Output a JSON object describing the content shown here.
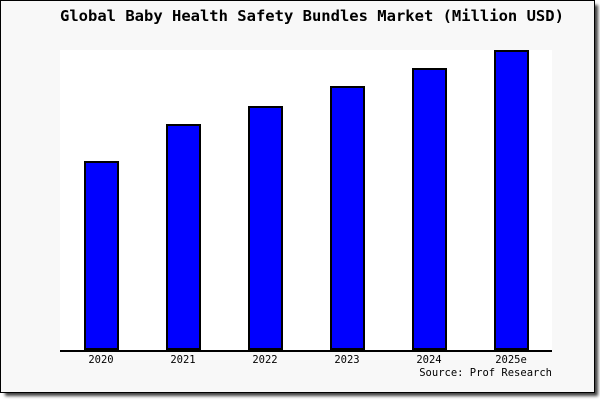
{
  "page": {
    "background_color": "#f8f8f8",
    "plot_background_color": "#ffffff",
    "frame_border_color": "#000000"
  },
  "chart_data": {
    "type": "bar",
    "title": "Global Baby Health Safety Bundles Market (Million USD)",
    "categories": [
      "2020",
      "2021",
      "2022",
      "2023",
      "2024",
      "2025e"
    ],
    "values": [
      62.9,
      75.3,
      81.5,
      88.0,
      94.1,
      100
    ],
    "note": "y-axis shows no ticks, gridlines or value labels; values are relative bar heights normalized so 2025e = 100",
    "xlabel": "",
    "ylabel": "",
    "ylim": [
      0,
      100.5
    ],
    "grid": false,
    "legend": false,
    "bar_color": "#0000ff",
    "bar_border_color": "#000000",
    "axis_color": "#000000",
    "source_note": "Source: Prof Research"
  }
}
